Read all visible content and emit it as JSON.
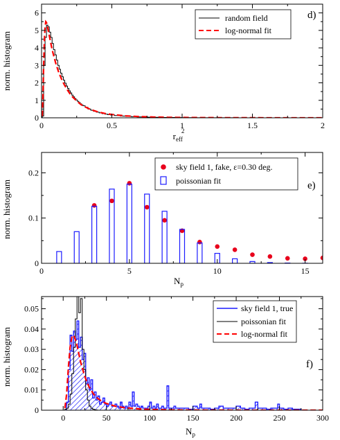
{
  "chart_data": [
    {
      "type": "line",
      "panel_label": "d)",
      "xlabel": "r",
      "xlabel_sub": "eff",
      "xlabel_sup": "2",
      "ylabel": "norm. histogram",
      "xlim": [
        0,
        2
      ],
      "ylim": [
        0,
        6.5
      ],
      "xticks": [
        0,
        0.5,
        1,
        1.5,
        2
      ],
      "xtick_labels": [
        "0",
        "0.5",
        "1",
        "1.5",
        "2"
      ],
      "yticks": [
        0,
        1,
        2,
        3,
        4,
        5,
        6
      ],
      "ytick_labels": [
        "0",
        "1",
        "2",
        "3",
        "4",
        "5",
        "6"
      ],
      "legend_position": "top-right",
      "series": [
        {
          "name": "random field",
          "style": "step",
          "color": "#000000",
          "x": [
            0.005,
            0.015,
            0.025,
            0.035,
            0.045,
            0.055,
            0.065,
            0.075,
            0.085,
            0.095,
            0.105,
            0.115,
            0.125,
            0.135,
            0.145,
            0.155,
            0.165,
            0.175,
            0.185,
            0.195,
            0.205,
            0.215,
            0.225,
            0.235,
            0.245,
            0.255,
            0.265,
            0.275,
            0.285,
            0.295,
            0.31,
            0.33,
            0.35,
            0.37,
            0.39,
            0.41,
            0.43,
            0.45,
            0.47,
            0.49,
            0.52,
            0.56,
            0.6,
            0.64,
            0.68,
            0.72,
            0.76,
            0.8,
            0.85,
            0.9,
            0.95,
            1.0,
            1.1,
            1.2,
            1.3,
            1.4,
            1.5,
            1.6,
            1.7,
            1.8,
            1.9,
            1.99
          ],
          "y": [
            0.1,
            3.0,
            4.6,
            5.3,
            5.2,
            4.9,
            4.6,
            4.25,
            3.9,
            3.6,
            3.3,
            3.0,
            2.78,
            2.55,
            2.35,
            2.15,
            1.98,
            1.82,
            1.68,
            1.54,
            1.42,
            1.3,
            1.2,
            1.1,
            1.02,
            0.94,
            0.87,
            0.8,
            0.74,
            0.69,
            0.6,
            0.5,
            0.43,
            0.37,
            0.32,
            0.28,
            0.24,
            0.21,
            0.18,
            0.16,
            0.13,
            0.1,
            0.08,
            0.065,
            0.052,
            0.042,
            0.035,
            0.028,
            0.022,
            0.018,
            0.014,
            0.011,
            0.007,
            0.005,
            0.003,
            0.002,
            0.0015,
            0.001,
            0.001,
            0.0005,
            0.0005,
            0.0003
          ]
        },
        {
          "name": "log-normal fit",
          "style": "dashed",
          "color": "#ff0000",
          "x": [
            0.005,
            0.01,
            0.015,
            0.02,
            0.025,
            0.03,
            0.035,
            0.04,
            0.05,
            0.06,
            0.07,
            0.08,
            0.09,
            0.1,
            0.12,
            0.14,
            0.16,
            0.18,
            0.2,
            0.22,
            0.25,
            0.28,
            0.3,
            0.35,
            0.4,
            0.45,
            0.5,
            0.6,
            0.7,
            0.8,
            0.9,
            1.0,
            1.2,
            1.4,
            1.6,
            1.8,
            2.0
          ],
          "y": [
            0.1,
            1.2,
            3.0,
            4.4,
            5.2,
            5.5,
            5.45,
            5.3,
            4.9,
            4.5,
            4.1,
            3.75,
            3.45,
            3.15,
            2.65,
            2.25,
            1.92,
            1.64,
            1.4,
            1.2,
            0.96,
            0.76,
            0.66,
            0.47,
            0.34,
            0.25,
            0.19,
            0.11,
            0.068,
            0.043,
            0.028,
            0.019,
            0.009,
            0.005,
            0.003,
            0.0017,
            0.001
          ]
        }
      ]
    },
    {
      "type": "bar",
      "panel_label": "e)",
      "xlabel": "N",
      "xlabel_sub": "p",
      "ylabel": "norm. histogram",
      "xlim": [
        0,
        16
      ],
      "ylim": [
        0,
        0.245
      ],
      "xticks": [
        0,
        5,
        10,
        15
      ],
      "xtick_labels": [
        "0",
        "5",
        "10",
        "15"
      ],
      "yticks": [
        0,
        0.1,
        0.2
      ],
      "ytick_labels": [
        "0",
        "0.1",
        "0.2"
      ],
      "legend_position": "top-right",
      "series": [
        {
          "name": "sky field 1, fake, ε=0.30 deg.",
          "style": "points",
          "color": "#e8001c",
          "x": [
            3,
            4,
            5,
            6,
            7,
            8,
            9,
            10,
            11,
            12,
            13,
            14,
            15,
            16
          ],
          "y": [
            0.128,
            0.138,
            0.177,
            0.124,
            0.095,
            0.072,
            0.047,
            0.037,
            0.03,
            0.019,
            0.015,
            0.011,
            0.01,
            0.012
          ]
        },
        {
          "name": "poissonian fit",
          "style": "open-bars",
          "color": "#1a1aff",
          "x": [
            1,
            2,
            3,
            4,
            5,
            6,
            7,
            8,
            9,
            10,
            11,
            12,
            13,
            14,
            15
          ],
          "y": [
            0.026,
            0.07,
            0.126,
            0.164,
            0.175,
            0.153,
            0.115,
            0.075,
            0.045,
            0.022,
            0.01,
            0.004,
            0.0016,
            0.0006,
            0.0002
          ]
        }
      ]
    },
    {
      "type": "line",
      "panel_label": "f)",
      "xlabel": "N",
      "xlabel_sub": "p",
      "ylabel": "norm. histogram",
      "xlim": [
        -25,
        300
      ],
      "ylim": [
        0,
        0.056
      ],
      "xticks": [
        0,
        50,
        100,
        150,
        200,
        250,
        300
      ],
      "xtick_labels": [
        "0",
        "50",
        "100",
        "150",
        "200",
        "250",
        "300"
      ],
      "yticks": [
        0,
        0.01,
        0.02,
        0.03,
        0.04,
        0.05
      ],
      "ytick_labels": [
        "0",
        "0.01",
        "0.02",
        "0.03",
        "0.04",
        "0.05"
      ],
      "legend_position": "top-right",
      "series": [
        {
          "name": "sky field 1, true",
          "style": "step-hatched",
          "color": "#1a1aff",
          "x": [
            4,
            6,
            8,
            10,
            12,
            14,
            16,
            18,
            20,
            22,
            24,
            26,
            28,
            30,
            32,
            34,
            36,
            38,
            40,
            42,
            44,
            46,
            48,
            50,
            52,
            54,
            56,
            58,
            60,
            62,
            64,
            66,
            68,
            70,
            72,
            74,
            76,
            78,
            80,
            82,
            84,
            86,
            88,
            90,
            92,
            94,
            96,
            98,
            100,
            102,
            104,
            106,
            108,
            110,
            112,
            114,
            116,
            118,
            120,
            122,
            124,
            126,
            128,
            130,
            135,
            140,
            145,
            150,
            155,
            158,
            160,
            165,
            170,
            175,
            180,
            185,
            190,
            195,
            200,
            205,
            210,
            215,
            220,
            222,
            225,
            230,
            235,
            240,
            245,
            248,
            250,
            255,
            260,
            265,
            270
          ],
          "y": [
            0.004,
            0.02,
            0.037,
            0.029,
            0.039,
            0.035,
            0.044,
            0.031,
            0.036,
            0.025,
            0.028,
            0.013,
            0.016,
            0.01,
            0.015,
            0.006,
            0.009,
            0.005,
            0.007,
            0.003,
            0.004,
            0.006,
            0.003,
            0.002,
            0.003,
            0.004,
            0.002,
            0.002,
            0.003,
            0.002,
            0.001,
            0.004,
            0.002,
            0.001,
            0.002,
            0.001,
            0.004,
            0.002,
            0.009,
            0.002,
            0.003,
            0.002,
            0.001,
            0.002,
            0.001,
            0.001,
            0.001,
            0.002,
            0.004,
            0.001,
            0.002,
            0.001,
            0.003,
            0.001,
            0.001,
            0.002,
            0.001,
            0.001,
            0.012,
            0.001,
            0.001,
            0.001,
            0.002,
            0.001,
            0.001,
            0.001,
            0.0005,
            0.002,
            0.001,
            0.003,
            0.001,
            0.001,
            0.0005,
            0.001,
            0.002,
            0.001,
            0.001,
            0.001,
            0.002,
            0.001,
            0.0005,
            0.001,
            0.001,
            0.004,
            0.001,
            0.001,
            0.0005,
            0.001,
            0.001,
            0.003,
            0.001,
            0.0005,
            0.001,
            0.0005,
            0.0005
          ]
        },
        {
          "name": "poissonian fit",
          "style": "step",
          "color": "#000000",
          "x": [
            0,
            2,
            4,
            6,
            8,
            10,
            12,
            14,
            16,
            18,
            20,
            22,
            24,
            26,
            28,
            30,
            32,
            34,
            36,
            38,
            40,
            45,
            50
          ],
          "y": [
            0.0,
            0.0005,
            0.001,
            0.003,
            0.008,
            0.018,
            0.031,
            0.045,
            0.056,
            0.048,
            0.055,
            0.03,
            0.02,
            0.01,
            0.005,
            0.002,
            0.001,
            0.0005,
            0.0002,
            0.0001,
            0.0,
            0.0,
            0.0
          ]
        },
        {
          "name": "log-normal  fit",
          "style": "dashed",
          "color": "#ff0000",
          "x": [
            2,
            4,
            6,
            8,
            10,
            12,
            14,
            16,
            18,
            20,
            22,
            24,
            26,
            28,
            30,
            35,
            40,
            45,
            50,
            60,
            70,
            80,
            90,
            100,
            120,
            140,
            160,
            200,
            250,
            300
          ],
          "y": [
            0.001,
            0.008,
            0.021,
            0.031,
            0.036,
            0.037,
            0.035,
            0.032,
            0.028,
            0.024,
            0.021,
            0.018,
            0.0155,
            0.0133,
            0.0115,
            0.008,
            0.0058,
            0.0043,
            0.0033,
            0.002,
            0.0013,
            0.0009,
            0.0006,
            0.0004,
            0.0002,
            0.0001,
            6e-05,
            2e-05,
            5e-06,
            1e-06
          ]
        }
      ]
    }
  ]
}
